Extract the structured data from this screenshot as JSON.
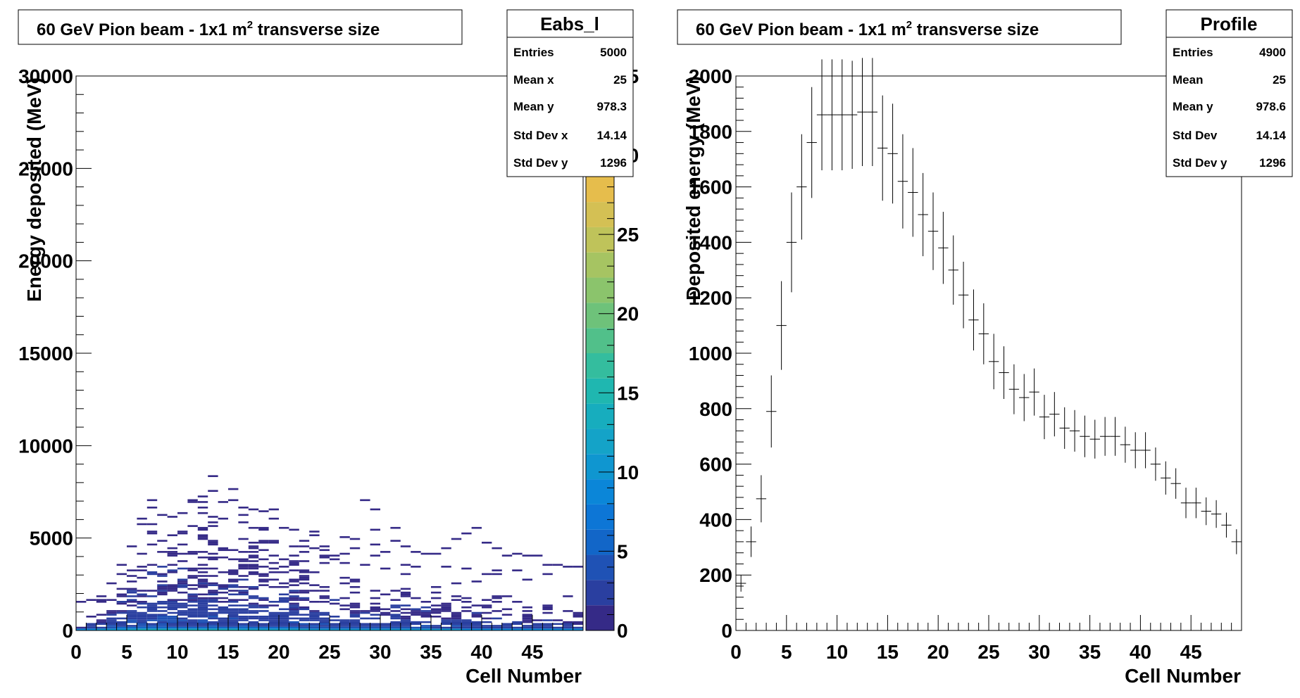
{
  "left": {
    "title_pre": "60 GeV Pion beam - 1x1 m",
    "title_sup": "2",
    "title_post": " transverse size",
    "stats": {
      "name": "Eabs_l",
      "rows": [
        {
          "label": "Entries",
          "value": "5000"
        },
        {
          "label": "Mean x",
          "value": "25"
        },
        {
          "label": "Mean y",
          "value": "978.3"
        },
        {
          "label": "Std Dev x",
          "value": "14.14"
        },
        {
          "label": "Std Dev y",
          "value": "1296"
        }
      ]
    },
    "palette_colors": [
      "#352a87",
      "#2a3fa0",
      "#1f52b5",
      "#1266c8",
      "#0d76d6",
      "#0b86d8",
      "#0f96d0",
      "#14a3c8",
      "#17adbe",
      "#1fb7b0",
      "#34bd9e",
      "#51c08a",
      "#6ec27a",
      "#8bc46c",
      "#a6c462",
      "#bfc35a",
      "#d4c054",
      "#e6bd4c",
      "#f3c240",
      "#f9d22a",
      "#f9e21a",
      "#f9fb0e"
    ],
    "chart_data": {
      "type": "heatmap",
      "xlabel": "Cell Number",
      "ylabel": "Energy deposited (MeV)",
      "xlim": [
        0,
        50
      ],
      "ylim": [
        0,
        30000
      ],
      "zlim": [
        0,
        35
      ],
      "xticks": [
        "0",
        "5",
        "10",
        "15",
        "20",
        "25",
        "30",
        "35",
        "40",
        "45"
      ],
      "yticks": [
        "0",
        "5000",
        "10000",
        "15000",
        "20000",
        "25000",
        "30000"
      ],
      "zticks": [
        "0",
        "5",
        "10",
        "15",
        "20",
        "25",
        "30",
        "35"
      ],
      "ybin_width": 100,
      "counts_y0": [
        8,
        9,
        10,
        11,
        11,
        12,
        13,
        13,
        14,
        14,
        14,
        14,
        14,
        13,
        13,
        13,
        12,
        12,
        12,
        12,
        12,
        12,
        12,
        11,
        11,
        11,
        11,
        11,
        10,
        10,
        10,
        10,
        10,
        10,
        10,
        10,
        10,
        10,
        9,
        9,
        9,
        9,
        9,
        9,
        8,
        8,
        8,
        8,
        8,
        8
      ],
      "counts_y1": [
        1,
        2,
        3,
        4,
        5,
        5,
        6,
        6,
        6,
        6,
        6,
        6,
        6,
        6,
        6,
        5,
        5,
        5,
        5,
        5,
        5,
        5,
        4,
        4,
        4,
        4,
        4,
        4,
        4,
        4,
        4,
        4,
        4,
        4,
        4,
        3,
        3,
        3,
        3,
        3,
        3,
        3,
        3,
        3,
        3,
        3,
        3,
        3,
        3,
        3
      ],
      "column_max_y": [
        1500,
        1600,
        1800,
        2500,
        3500,
        4500,
        6000,
        7000,
        6200,
        6100,
        6300,
        7000,
        7200,
        8300,
        6900,
        7600,
        6600,
        6500,
        6400,
        6500,
        5500,
        5400,
        4800,
        5300,
        4500,
        4000,
        5000,
        4900,
        7000,
        6500,
        4200,
        5500,
        4500,
        4200,
        4100,
        4100,
        4400,
        4900,
        5200,
        5500,
        4700,
        4400,
        4000,
        4100,
        4000,
        4000,
        3500,
        3500,
        3400,
        3400
      ],
      "density_profile_y": [
        170,
        320,
        475,
        790,
        1100,
        1400,
        1600,
        1760,
        1860,
        1860,
        1860,
        1860,
        1870,
        1870,
        1740,
        1720,
        1620,
        1580,
        1500,
        1440,
        1380,
        1300,
        1210,
        1120,
        1070,
        970,
        930,
        870,
        840,
        860,
        770,
        780,
        730,
        720,
        700,
        690,
        700,
        700,
        670,
        650,
        650,
        600,
        550,
        530,
        460,
        460,
        430,
        420,
        380,
        320
      ]
    }
  },
  "right": {
    "title_pre": "60 GeV Pion beam - 1x1 m",
    "title_sup": "2",
    "title_post": " transverse size",
    "stats": {
      "name": "Profile",
      "rows": [
        {
          "label": "Entries",
          "value": "4900"
        },
        {
          "label": "Mean",
          "value": "25"
        },
        {
          "label": "Mean y",
          "value": "978.6"
        },
        {
          "label": "Std Dev",
          "value": "14.14"
        },
        {
          "label": "Std Dev y",
          "value": "1296"
        }
      ]
    },
    "chart_data": {
      "type": "scatter",
      "xlabel": "Cell Number",
      "ylabel": "Deposited energy (MeV)",
      "xlim": [
        0,
        50
      ],
      "ylim": [
        0,
        2000
      ],
      "xticks": [
        "0",
        "5",
        "10",
        "15",
        "20",
        "25",
        "30",
        "35",
        "40",
        "45"
      ],
      "yticks": [
        "0",
        "200",
        "400",
        "600",
        "800",
        "1000",
        "1200",
        "1400",
        "1600",
        "1800",
        "2000"
      ],
      "x": [
        0.5,
        1.5,
        2.5,
        3.5,
        4.5,
        5.5,
        6.5,
        7.5,
        8.5,
        9.5,
        10.5,
        11.5,
        12.5,
        13.5,
        14.5,
        15.5,
        16.5,
        17.5,
        18.5,
        19.5,
        20.5,
        21.5,
        22.5,
        23.5,
        24.5,
        25.5,
        26.5,
        27.5,
        28.5,
        29.5,
        30.5,
        31.5,
        32.5,
        33.5,
        34.5,
        35.5,
        36.5,
        37.5,
        38.5,
        39.5,
        40.5,
        41.5,
        42.5,
        43.5,
        44.5,
        45.5,
        46.5,
        47.5,
        48.5,
        49.5
      ],
      "y": [
        170,
        320,
        475,
        790,
        1100,
        1400,
        1600,
        1760,
        1860,
        1860,
        1860,
        1860,
        1870,
        1870,
        1740,
        1720,
        1620,
        1580,
        1500,
        1440,
        1380,
        1300,
        1210,
        1120,
        1070,
        970,
        930,
        870,
        840,
        860,
        770,
        780,
        730,
        720,
        700,
        690,
        700,
        700,
        670,
        650,
        650,
        600,
        550,
        530,
        460,
        460,
        430,
        420,
        380,
        320
      ],
      "err": [
        30,
        55,
        85,
        130,
        160,
        180,
        190,
        200,
        200,
        200,
        200,
        195,
        195,
        195,
        190,
        180,
        170,
        160,
        150,
        140,
        130,
        125,
        120,
        110,
        110,
        100,
        95,
        90,
        85,
        85,
        80,
        80,
        75,
        75,
        75,
        70,
        70,
        70,
        65,
        65,
        65,
        60,
        60,
        55,
        55,
        55,
        50,
        50,
        45,
        45
      ]
    }
  }
}
